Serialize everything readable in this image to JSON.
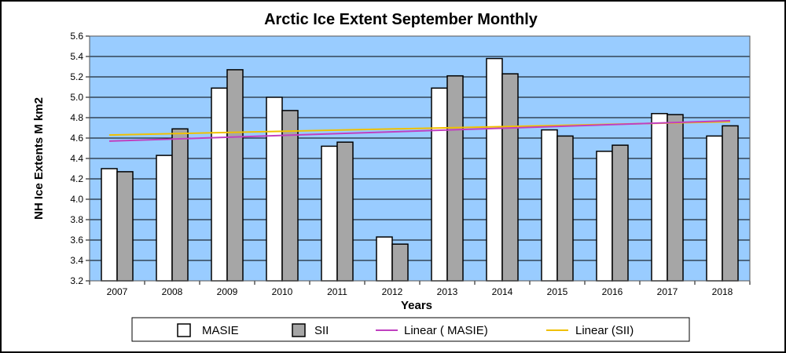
{
  "chart_data": {
    "type": "bar",
    "title": "Arctic Ice Extent September Monthly",
    "xlabel": "Years",
    "ylabel": "NH Ice Extents M km2",
    "ylim": [
      3.2,
      5.6
    ],
    "yticks": [
      "3.2",
      "3.4",
      "3.6",
      "3.8",
      "4.0",
      "4.2",
      "4.4",
      "4.6",
      "4.8",
      "5.0",
      "5.2",
      "5.4",
      "5.6"
    ],
    "grid": true,
    "legend_position": "bottom",
    "categories": [
      "2007",
      "2008",
      "2009",
      "2010",
      "2011",
      "2012",
      "2013",
      "2014",
      "2015",
      "2016",
      "2017",
      "2018"
    ],
    "series": [
      {
        "name": "MASIE",
        "color": "#ffffff",
        "values": [
          4.3,
          4.43,
          5.09,
          5.0,
          4.52,
          3.63,
          5.09,
          5.38,
          4.68,
          4.47,
          4.84,
          4.62
        ]
      },
      {
        "name": "SII",
        "color": "#a6a6a6",
        "values": [
          4.27,
          4.69,
          5.27,
          4.87,
          4.56,
          3.56,
          5.21,
          5.23,
          4.62,
          4.53,
          4.83,
          4.72
        ]
      }
    ],
    "trendlines": [
      {
        "name": "Linear ( MASIE)",
        "color": "#c040c0",
        "start": 4.57,
        "end": 4.77
      },
      {
        "name": "Linear (SII)",
        "color": "#f0c000",
        "start": 4.63,
        "end": 4.76
      }
    ],
    "plot_background": "#99ccff"
  }
}
